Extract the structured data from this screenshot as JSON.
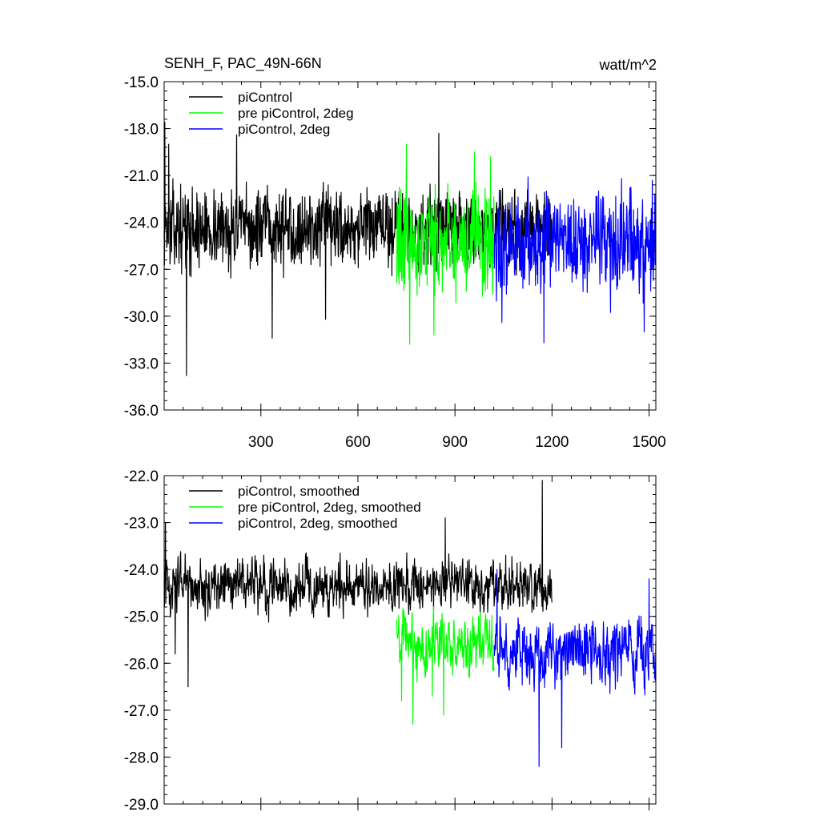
{
  "title_left": "SENH_F, PAC_49N-66N",
  "title_right": "watt/m^2",
  "chart_data": [
    {
      "type": "line",
      "xlim": [
        1,
        1521
      ],
      "ylim": [
        -36.0,
        -15.0
      ],
      "xticks": [
        300,
        600,
        900,
        1200,
        1500
      ],
      "xtick_labels": [
        "300",
        "600",
        "900",
        "1200",
        "1500"
      ],
      "yticks": [
        -36.0,
        -33.0,
        -30.0,
        -27.0,
        -24.0,
        -21.0,
        -18.0,
        -15.0
      ],
      "ytick_labels": [
        "-36.0",
        "-33.0",
        "-30.0",
        "-27.0",
        "-24.0",
        "-21.0",
        "-18.0",
        "-15.0"
      ],
      "legend_position": "top-left",
      "series": [
        {
          "name": "piControl",
          "color": "#000000",
          "x_start": 1,
          "x_end": 1200,
          "mean": -24.4,
          "spread": 1.4,
          "peaks": [
            [
              3,
              -17.6
            ],
            [
              5,
              -23.0
            ],
            [
              15,
              -19.0
            ],
            [
              70,
              -33.8
            ],
            [
              225,
              -18.4
            ],
            [
              335,
              -31.4
            ],
            [
              500,
              -30.2
            ],
            [
              850,
              -18.3
            ]
          ]
        },
        {
          "name": "pre piControl, 2deg",
          "color": "#00ff00",
          "x_start": 720,
          "x_end": 1021,
          "mean": -25.2,
          "spread": 1.9,
          "peaks": [
            [
              750,
              -19.0
            ],
            [
              760,
              -31.8
            ],
            [
              835,
              -31.2
            ],
            [
              960,
              -19.5
            ],
            [
              1010,
              -19.8
            ]
          ]
        },
        {
          "name": "piControl, 2deg",
          "color": "#0000ff",
          "x_start": 1021,
          "x_end": 1521,
          "mean": -25.3,
          "spread": 1.7,
          "peaks": [
            [
              1045,
              -30.4
            ],
            [
              1175,
              -31.7
            ],
            [
              1485,
              -31.0
            ],
            [
              1510,
              -21.3
            ]
          ]
        }
      ]
    },
    {
      "type": "line",
      "xlim": [
        1,
        1521
      ],
      "ylim": [
        -29.0,
        -22.0
      ],
      "xticks": [
        300,
        600,
        900,
        1200,
        1500
      ],
      "yticks": [
        -29.0,
        -28.0,
        -27.0,
        -26.0,
        -25.0,
        -24.0,
        -23.0,
        -22.0
      ],
      "ytick_labels": [
        "-29.0",
        "-28.0",
        "-27.0",
        "-26.0",
        "-25.0",
        "-24.0",
        "-23.0",
        "-22.0"
      ],
      "legend_position": "top-left",
      "series": [
        {
          "name": "piControl, smoothed",
          "color": "#000000",
          "x_start": 1,
          "x_end": 1200,
          "mean": -24.35,
          "spread": 0.45,
          "peaks": [
            [
              5,
              -23.0
            ],
            [
              75,
              -26.5
            ],
            [
              35,
              -25.8
            ],
            [
              1170,
              -22.1
            ],
            [
              870,
              -22.9
            ]
          ]
        },
        {
          "name": "pre piControl, 2deg, smoothed",
          "color": "#00ff00",
          "x_start": 720,
          "x_end": 1021,
          "mean": -25.6,
          "spread": 0.5,
          "peaks": [
            [
              770,
              -27.3
            ],
            [
              735,
              -26.8
            ],
            [
              830,
              -26.7
            ],
            [
              865,
              -27.1
            ]
          ]
        },
        {
          "name": "piControl, 2deg, smoothed",
          "color": "#0000ff",
          "x_start": 1021,
          "x_end": 1521,
          "mean": -25.75,
          "spread": 0.55,
          "peaks": [
            [
              1160,
              -28.2
            ],
            [
              1230,
              -27.8
            ],
            [
              1500,
              -24.2
            ],
            [
              1030,
              -24.0
            ]
          ]
        }
      ]
    }
  ]
}
